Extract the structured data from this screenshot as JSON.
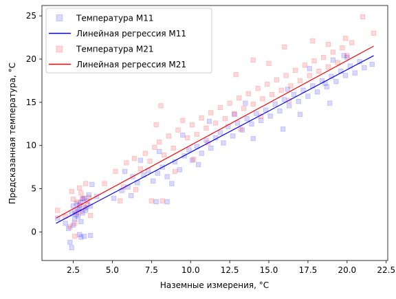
{
  "chart_data": {
    "type": "scatter",
    "title": "",
    "xlabel": "Наземные измерения, °C",
    "ylabel": "Предсказанная температура, °C",
    "xlim": [
      0.5,
      22.6
    ],
    "ylim": [
      -3.3,
      26.2
    ],
    "xticks": [
      2.5,
      5.0,
      7.5,
      10.0,
      12.5,
      15.0,
      17.5,
      20.0,
      22.5
    ],
    "xtick_labels": [
      "2.5",
      "5.0",
      "7.5",
      "10.0",
      "12.5",
      "15.0",
      "17.5",
      "20.0",
      "22.5"
    ],
    "yticks": [
      0,
      5,
      10,
      15,
      20,
      25
    ],
    "ytick_labels": [
      "0",
      "5",
      "10",
      "15",
      "20",
      "25"
    ],
    "grid": false,
    "legend_position": "top-left",
    "series": [
      {
        "name": "Температура M11",
        "kind": "scatter",
        "marker": "square",
        "color": "#0000ff",
        "alpha": 0.15,
        "points": [
          [
            2.3,
            -1.2
          ],
          [
            2.4,
            -1.8
          ],
          [
            2.9,
            -0.3
          ],
          [
            3.0,
            -0.6
          ],
          [
            3.2,
            -0.5
          ],
          [
            3.6,
            -0.4
          ],
          [
            2.2,
            0.4
          ],
          [
            2.5,
            0.8
          ],
          [
            2.6,
            1.5
          ],
          [
            2.7,
            2.0
          ],
          [
            2.8,
            2.6
          ],
          [
            2.9,
            3.1
          ],
          [
            3.0,
            3.4
          ],
          [
            3.1,
            2.2
          ],
          [
            3.3,
            2.8
          ],
          [
            3.4,
            3.6
          ],
          [
            2.5,
            3.0
          ],
          [
            2.6,
            2.4
          ],
          [
            2.8,
            1.8
          ],
          [
            3.0,
            1.2
          ],
          [
            3.2,
            3.9
          ],
          [
            3.5,
            4.3
          ],
          [
            3.7,
            5.5
          ],
          [
            4.0,
            4.1
          ],
          [
            2.9,
            2.7
          ],
          [
            3.1,
            3.8
          ],
          [
            2.7,
            3.3
          ],
          [
            3.3,
            2.5
          ],
          [
            2.4,
            2.1
          ],
          [
            3.6,
            3.0
          ],
          [
            1.5,
            1.6
          ],
          [
            2.0,
            1.0
          ],
          [
            5.1,
            3.9
          ],
          [
            5.6,
            4.8
          ],
          [
            6.0,
            5.2
          ],
          [
            6.3,
            6.4
          ],
          [
            6.6,
            5.7
          ],
          [
            7.0,
            6.6
          ],
          [
            7.3,
            7.1
          ],
          [
            7.6,
            5.9
          ],
          [
            7.9,
            6.8
          ],
          [
            8.2,
            7.5
          ],
          [
            8.5,
            6.4
          ],
          [
            8.8,
            5.6
          ],
          [
            9.0,
            8.1
          ],
          [
            9.3,
            7.2
          ],
          [
            9.6,
            8.8
          ],
          [
            9.9,
            9.5
          ],
          [
            10.1,
            8.3
          ],
          [
            10.4,
            9.9
          ],
          [
            10.7,
            9.1
          ],
          [
            11.0,
            10.6
          ],
          [
            11.3,
            9.7
          ],
          [
            11.6,
            10.9
          ],
          [
            11.9,
            11.5
          ],
          [
            12.1,
            10.3
          ],
          [
            12.4,
            12.2
          ],
          [
            12.7,
            11.1
          ],
          [
            13.0,
            12.6
          ],
          [
            13.3,
            11.8
          ],
          [
            13.6,
            13.1
          ],
          [
            13.9,
            12.5
          ],
          [
            14.2,
            13.7
          ],
          [
            14.5,
            12.9
          ],
          [
            14.8,
            14.1
          ],
          [
            15.1,
            13.4
          ],
          [
            15.4,
            14.8
          ],
          [
            15.7,
            14.0
          ],
          [
            16.0,
            15.3
          ],
          [
            16.3,
            14.6
          ],
          [
            16.6,
            15.9
          ],
          [
            16.9,
            15.1
          ],
          [
            17.2,
            16.4
          ],
          [
            17.5,
            15.7
          ],
          [
            17.8,
            16.9
          ],
          [
            18.1,
            16.2
          ],
          [
            18.4,
            17.5
          ],
          [
            18.7,
            16.8
          ],
          [
            19.0,
            18.0
          ],
          [
            19.3,
            17.4
          ],
          [
            19.6,
            18.6
          ],
          [
            19.9,
            18.1
          ],
          [
            20.2,
            19.2
          ],
          [
            20.5,
            18.4
          ],
          [
            20.8,
            19.7
          ],
          [
            21.1,
            19.0
          ],
          [
            21.6,
            19.4
          ],
          [
            19.8,
            20.4
          ],
          [
            18.6,
            17.2
          ],
          [
            17.0,
            13.6
          ],
          [
            16.2,
            16.5
          ],
          [
            14.0,
            10.8
          ],
          [
            13.5,
            14.9
          ],
          [
            12.8,
            13.6
          ],
          [
            11.2,
            12.8
          ],
          [
            10.5,
            7.8
          ],
          [
            9.5,
            11.2
          ],
          [
            8.0,
            9.3
          ],
          [
            7.8,
            3.5
          ],
          [
            8.5,
            3.5
          ],
          [
            6.8,
            8.3
          ],
          [
            6.2,
            4.2
          ],
          [
            5.8,
            7.0
          ],
          [
            15.9,
            11.9
          ],
          [
            17.6,
            18.9
          ],
          [
            19.1,
            19.9
          ],
          [
            20.0,
            20.2
          ],
          [
            18.9,
            14.9
          ]
        ]
      },
      {
        "name": "Линейная регрессия M11",
        "kind": "line",
        "color": "#0000ff",
        "x": [
          1.4,
          21.7
        ],
        "y": [
          1.0,
          20.4
        ]
      },
      {
        "name": "Температура M21",
        "kind": "scatter",
        "marker": "square",
        "color": "#ff0000",
        "alpha": 0.15,
        "points": [
          [
            1.5,
            2.5
          ],
          [
            2.0,
            1.8
          ],
          [
            2.3,
            0.6
          ],
          [
            2.6,
            -0.5
          ],
          [
            2.8,
            3.5
          ],
          [
            3.0,
            4.5
          ],
          [
            3.2,
            2.9
          ],
          [
            2.5,
            3.8
          ],
          [
            2.7,
            2.2
          ],
          [
            3.1,
            3.9
          ],
          [
            3.4,
            3.2
          ],
          [
            2.9,
            5.1
          ],
          [
            3.3,
            5.6
          ],
          [
            3.6,
            1.9
          ],
          [
            2.4,
            4.7
          ],
          [
            3.5,
            4.0
          ],
          [
            2.6,
            1.0
          ],
          [
            3.0,
            2.4
          ],
          [
            5.2,
            7.0
          ],
          [
            5.5,
            3.6
          ],
          [
            5.9,
            8.0
          ],
          [
            6.4,
            8.5
          ],
          [
            6.8,
            7.3
          ],
          [
            7.1,
            9.1
          ],
          [
            7.4,
            8.2
          ],
          [
            7.7,
            9.8
          ],
          [
            8.0,
            10.4
          ],
          [
            8.3,
            8.9
          ],
          [
            8.6,
            11.1
          ],
          [
            8.9,
            9.7
          ],
          [
            9.2,
            11.8
          ],
          [
            9.5,
            12.9
          ],
          [
            9.8,
            10.9
          ],
          [
            10.1,
            12.4
          ],
          [
            10.4,
            11.3
          ],
          [
            10.7,
            13.2
          ],
          [
            11.0,
            12.0
          ],
          [
            11.3,
            13.8
          ],
          [
            11.6,
            12.6
          ],
          [
            11.9,
            14.4
          ],
          [
            12.2,
            13.1
          ],
          [
            12.5,
            14.9
          ],
          [
            12.8,
            13.7
          ],
          [
            13.1,
            15.5
          ],
          [
            13.4,
            14.3
          ],
          [
            13.7,
            16.0
          ],
          [
            14.0,
            14.8
          ],
          [
            14.3,
            16.6
          ],
          [
            14.6,
            15.4
          ],
          [
            14.9,
            17.1
          ],
          [
            15.2,
            15.9
          ],
          [
            15.5,
            17.6
          ],
          [
            15.8,
            16.4
          ],
          [
            16.1,
            18.1
          ],
          [
            16.4,
            16.9
          ],
          [
            16.7,
            18.7
          ],
          [
            17.0,
            17.5
          ],
          [
            17.3,
            19.3
          ],
          [
            17.6,
            18.1
          ],
          [
            17.9,
            19.8
          ],
          [
            18.2,
            18.6
          ],
          [
            18.5,
            20.2
          ],
          [
            18.8,
            19.1
          ],
          [
            19.1,
            20.8
          ],
          [
            19.4,
            19.6
          ],
          [
            19.7,
            21.3
          ],
          [
            20.0,
            20.4
          ],
          [
            20.3,
            21.9
          ],
          [
            21.0,
            24.9
          ],
          [
            21.7,
            23.0
          ],
          [
            19.9,
            22.4
          ],
          [
            18.8,
            21.7
          ],
          [
            17.8,
            22.1
          ],
          [
            16.0,
            21.4
          ],
          [
            15.0,
            19.5
          ],
          [
            14.0,
            19.9
          ],
          [
            12.9,
            18.2
          ],
          [
            8.1,
            14.6
          ],
          [
            8.2,
            3.6
          ],
          [
            7.5,
            3.6
          ],
          [
            9.0,
            7.0
          ],
          [
            10.2,
            8.4
          ],
          [
            11.1,
            10.3
          ],
          [
            13.2,
            11.9
          ],
          [
            14.5,
            13.4
          ],
          [
            16.3,
            15.2
          ],
          [
            6.5,
            4.9
          ],
          [
            5.7,
            5.2
          ],
          [
            4.5,
            5.6
          ],
          [
            7.8,
            12.4
          ]
        ]
      },
      {
        "name": "Линейная регрессия M21",
        "kind": "line",
        "color": "#ff0000",
        "x": [
          1.4,
          21.7
        ],
        "y": [
          1.6,
          21.5
        ]
      }
    ]
  }
}
